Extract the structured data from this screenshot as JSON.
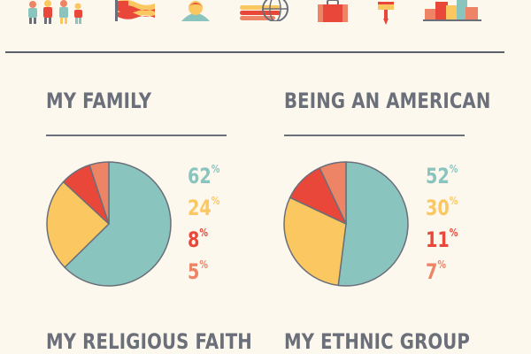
{
  "colors": {
    "teal": "#89c4bf",
    "yellow": "#fbc760",
    "red": "#e8473a",
    "salmon": "#ee8466",
    "text": "#6b6f7a",
    "background": "#fcf8ee"
  },
  "icons": [
    "family-icon",
    "flag-icon",
    "person-icon",
    "globe-icon",
    "briefcase-icon",
    "signpost-icon",
    "city-icon"
  ],
  "chart_data": [
    {
      "type": "pie",
      "title": "MY FAMILY",
      "categories": [
        "",
        "",
        "",
        ""
      ],
      "values": [
        62,
        24,
        8,
        5
      ],
      "labels": [
        {
          "num": "62",
          "sym": "%"
        },
        {
          "num": "24",
          "sym": "%"
        },
        {
          "num": "8",
          "sym": "%"
        },
        {
          "num": "5",
          "sym": "%"
        }
      ],
      "colors": [
        "#89c4bf",
        "#fbc760",
        "#e8473a",
        "#ee8466"
      ]
    },
    {
      "type": "pie",
      "title": "BEING AN AMERICAN",
      "categories": [
        "",
        "",
        "",
        ""
      ],
      "values": [
        52,
        30,
        11,
        7
      ],
      "labels": [
        {
          "num": "52",
          "sym": "%"
        },
        {
          "num": "30",
          "sym": "%"
        },
        {
          "num": "11",
          "sym": "%"
        },
        {
          "num": "7",
          "sym": "%"
        }
      ],
      "colors": [
        "#89c4bf",
        "#fbc760",
        "#e8473a",
        "#ee8466"
      ]
    },
    {
      "type": "pie",
      "title": "MY RELIGIOUS FAITH"
    },
    {
      "type": "pie",
      "title": "MY ETHNIC GROUP"
    }
  ]
}
